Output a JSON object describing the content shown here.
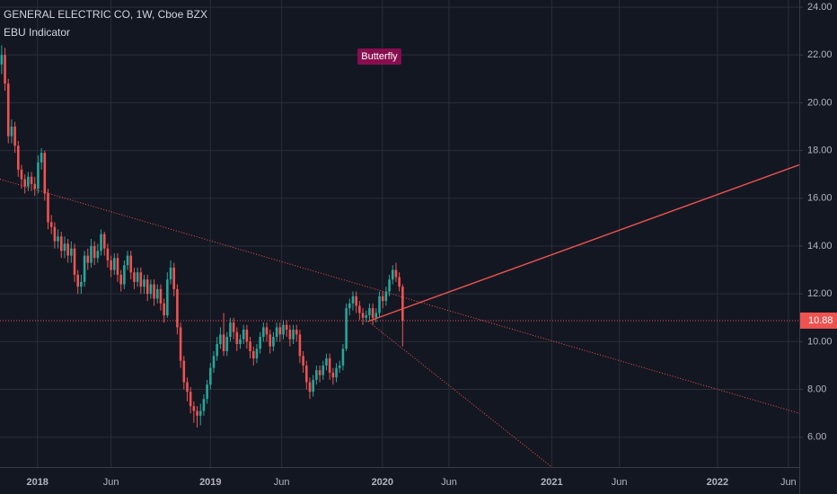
{
  "chart_data": {
    "type": "candlestick",
    "title": "GENERAL ELECTRIC CO, 1W, Cboe BZX",
    "subtitle": "EBU Indicator",
    "annotation": "Butterfly",
    "annotation_at": 114,
    "up_color": "#26a69a",
    "down_color": "#ef5350",
    "grid": true,
    "xlim": [
      -0.5,
      240.7
    ],
    "ylim": [
      4.75,
      24.3
    ],
    "xticks": [
      {
        "value": 10.8,
        "label": "2018"
      },
      {
        "value": 33,
        "label": "Jun"
      },
      {
        "value": 63,
        "label": "2019"
      },
      {
        "value": 84.5,
        "label": "Jun"
      },
      {
        "value": 114.9,
        "label": "2020"
      },
      {
        "value": 135,
        "label": "Jun"
      },
      {
        "value": 166,
        "label": "2021"
      },
      {
        "value": 186.4,
        "label": "Jun"
      },
      {
        "value": 216,
        "label": "2022"
      },
      {
        "value": 237.4,
        "label": "Jun"
      }
    ],
    "yticks": [
      {
        "value": 6,
        "label": "6.00"
      },
      {
        "value": 8,
        "label": "8.00"
      },
      {
        "value": 10,
        "label": "10.00"
      },
      {
        "value": 12,
        "label": "12.00"
      },
      {
        "value": 14,
        "label": "14.00"
      },
      {
        "value": 16,
        "label": "16.00"
      },
      {
        "value": 18,
        "label": "18.00"
      },
      {
        "value": 20,
        "label": "20.00"
      },
      {
        "value": 22,
        "label": "22.00"
      },
      {
        "value": 24,
        "label": "24.00"
      }
    ],
    "last_price": 10.88,
    "last_price_color": "#ef5350",
    "lines": [
      {
        "x": [
          -0.5,
          240.7
        ],
        "y": [
          16.8,
          7.0
        ],
        "style": "dotted",
        "color": "#ef5350"
      },
      {
        "x": [
          110.6,
          240.7
        ],
        "y": [
          10.85,
          17.4
        ],
        "style": "solid",
        "color": "#ef5350"
      },
      {
        "x": [
          110.6,
          166
        ],
        "y": [
          10.85,
          4.75
        ],
        "style": "dotted",
        "color": "#ef5350"
      }
    ],
    "ohlc": [
      [
        21.6,
        22.4,
        21.2,
        22.0
      ],
      [
        22.0,
        22.3,
        20.5,
        20.8
      ],
      [
        20.8,
        21.0,
        18.3,
        18.6
      ],
      [
        18.6,
        19.3,
        18.3,
        19.0
      ],
      [
        19.0,
        19.2,
        17.9,
        18.2
      ],
      [
        18.2,
        18.4,
        16.9,
        17.2
      ],
      [
        17.2,
        17.4,
        16.4,
        16.8
      ],
      [
        16.8,
        17.0,
        16.2,
        16.5
      ],
      [
        16.5,
        17.1,
        16.3,
        16.9
      ],
      [
        16.9,
        17.1,
        16.3,
        16.6
      ],
      [
        16.6,
        16.9,
        16.1,
        16.4
      ],
      [
        16.4,
        17.8,
        16.2,
        17.5
      ],
      [
        17.5,
        18.1,
        17.2,
        17.9
      ],
      [
        17.9,
        18.0,
        15.9,
        16.2
      ],
      [
        16.2,
        16.4,
        14.7,
        15.0
      ],
      [
        15.0,
        15.3,
        14.5,
        14.8
      ],
      [
        14.8,
        15.0,
        13.9,
        14.2
      ],
      [
        14.2,
        14.7,
        13.9,
        14.4
      ],
      [
        14.4,
        14.6,
        13.5,
        13.8
      ],
      [
        13.8,
        14.4,
        13.5,
        14.1
      ],
      [
        14.1,
        14.3,
        13.3,
        13.6
      ],
      [
        13.6,
        14.2,
        13.3,
        13.9
      ],
      [
        13.9,
        14.1,
        12.5,
        12.8
      ],
      [
        12.8,
        13.0,
        12.0,
        12.3
      ],
      [
        12.3,
        12.8,
        12.0,
        12.5
      ],
      [
        12.5,
        13.8,
        12.3,
        13.6
      ],
      [
        13.6,
        13.9,
        13.0,
        13.3
      ],
      [
        13.3,
        14.3,
        13.1,
        14.0
      ],
      [
        14.0,
        14.2,
        13.2,
        13.5
      ],
      [
        13.5,
        14.1,
        13.3,
        13.8
      ],
      [
        13.8,
        14.7,
        13.6,
        14.5
      ],
      [
        14.5,
        14.6,
        13.6,
        13.9
      ],
      [
        13.9,
        14.1,
        13.1,
        13.4
      ],
      [
        13.4,
        13.6,
        12.7,
        13.0
      ],
      [
        13.0,
        13.7,
        12.8,
        13.5
      ],
      [
        13.5,
        13.7,
        12.5,
        12.8
      ],
      [
        12.8,
        13.0,
        12.1,
        12.4
      ],
      [
        12.4,
        13.4,
        12.2,
        13.2
      ],
      [
        13.2,
        13.8,
        13.0,
        13.6
      ],
      [
        13.6,
        13.8,
        12.6,
        12.9
      ],
      [
        12.9,
        13.1,
        12.2,
        12.5
      ],
      [
        12.5,
        13.1,
        12.3,
        12.9
      ],
      [
        12.9,
        13.1,
        12.0,
        12.3
      ],
      [
        12.3,
        12.8,
        12.0,
        12.6
      ],
      [
        12.6,
        12.8,
        11.7,
        12.0
      ],
      [
        12.0,
        12.6,
        11.8,
        12.4
      ],
      [
        12.4,
        12.6,
        11.5,
        11.8
      ],
      [
        11.8,
        12.4,
        11.6,
        12.2
      ],
      [
        12.2,
        12.4,
        11.3,
        11.6
      ],
      [
        11.6,
        11.8,
        10.8,
        11.1
      ],
      [
        11.1,
        12.9,
        11.0,
        12.6
      ],
      [
        12.6,
        13.4,
        12.4,
        13.1
      ],
      [
        13.1,
        13.3,
        11.9,
        12.2
      ],
      [
        12.2,
        12.4,
        10.3,
        10.6
      ],
      [
        10.6,
        10.8,
        8.9,
        9.2
      ],
      [
        9.2,
        9.4,
        8.0,
        8.3
      ],
      [
        8.3,
        8.5,
        7.5,
        7.9
      ],
      [
        7.9,
        8.1,
        7.0,
        7.3
      ],
      [
        7.3,
        7.5,
        6.6,
        7.1
      ],
      [
        7.1,
        7.3,
        6.4,
        6.9
      ],
      [
        6.9,
        7.4,
        6.5,
        7.1
      ],
      [
        7.1,
        7.8,
        6.9,
        7.6
      ],
      [
        7.6,
        8.4,
        7.4,
        8.2
      ],
      [
        8.2,
        9.1,
        8.0,
        8.9
      ],
      [
        8.9,
        9.6,
        8.7,
        9.4
      ],
      [
        9.4,
        10.2,
        9.2,
        9.9
      ],
      [
        9.9,
        10.6,
        9.7,
        10.3
      ],
      [
        10.3,
        11.2,
        9.4,
        9.6
      ],
      [
        9.6,
        10.4,
        9.4,
        10.2
      ],
      [
        10.2,
        11.0,
        10.0,
        10.8
      ],
      [
        10.8,
        11.0,
        10.1,
        10.4
      ],
      [
        10.4,
        10.6,
        9.6,
        9.9
      ],
      [
        9.9,
        10.3,
        9.7,
        10.1
      ],
      [
        10.1,
        10.7,
        9.9,
        10.5
      ],
      [
        10.5,
        10.7,
        9.7,
        10.0
      ],
      [
        10.0,
        10.2,
        9.3,
        9.6
      ],
      [
        9.6,
        9.8,
        9.0,
        9.3
      ],
      [
        9.3,
        9.9,
        9.1,
        9.7
      ],
      [
        9.7,
        10.4,
        9.5,
        10.2
      ],
      [
        10.2,
        10.8,
        10.0,
        10.6
      ],
      [
        10.6,
        10.8,
        10.0,
        10.3
      ],
      [
        10.3,
        10.5,
        9.5,
        9.8
      ],
      [
        9.8,
        10.4,
        9.6,
        10.2
      ],
      [
        10.2,
        10.8,
        10.0,
        10.6
      ],
      [
        10.6,
        10.8,
        10.0,
        10.3
      ],
      [
        10.3,
        10.9,
        10.1,
        10.7
      ],
      [
        10.7,
        10.9,
        10.2,
        10.5
      ],
      [
        10.5,
        10.7,
        9.8,
        10.1
      ],
      [
        10.1,
        10.7,
        9.9,
        10.5
      ],
      [
        10.5,
        10.7,
        10.0,
        10.3
      ],
      [
        10.3,
        10.5,
        9.1,
        9.4
      ],
      [
        9.4,
        9.6,
        8.7,
        9.0
      ],
      [
        9.0,
        9.2,
        8.0,
        8.3
      ],
      [
        8.3,
        8.5,
        7.6,
        7.9
      ],
      [
        7.9,
        8.6,
        7.7,
        8.4
      ],
      [
        8.4,
        9.0,
        8.2,
        8.8
      ],
      [
        8.8,
        9.0,
        8.3,
        8.6
      ],
      [
        8.6,
        9.2,
        8.4,
        9.0
      ],
      [
        9.0,
        9.5,
        8.8,
        9.3
      ],
      [
        9.3,
        9.5,
        8.4,
        8.7
      ],
      [
        8.7,
        8.9,
        8.2,
        8.5
      ],
      [
        8.5,
        9.1,
        8.3,
        8.9
      ],
      [
        8.9,
        9.2,
        8.7,
        9.0
      ],
      [
        9.0,
        9.9,
        8.8,
        9.7
      ],
      [
        9.7,
        11.6,
        9.6,
        11.4
      ],
      [
        11.4,
        11.8,
        11.1,
        11.6
      ],
      [
        11.6,
        12.1,
        11.3,
        11.9
      ],
      [
        11.9,
        12.1,
        11.2,
        11.5
      ],
      [
        11.5,
        11.7,
        10.9,
        11.2
      ],
      [
        11.2,
        11.4,
        10.7,
        11.0
      ],
      [
        11.0,
        11.3,
        10.8,
        11.1
      ],
      [
        11.1,
        11.6,
        10.9,
        11.4
      ],
      [
        11.4,
        11.6,
        10.7,
        11.0
      ],
      [
        11.0,
        11.4,
        10.8,
        11.2
      ],
      [
        11.2,
        12.1,
        11.0,
        11.9
      ],
      [
        11.9,
        12.1,
        11.4,
        11.7
      ],
      [
        11.7,
        12.3,
        11.5,
        12.1
      ],
      [
        12.1,
        12.8,
        11.9,
        12.6
      ],
      [
        12.6,
        13.2,
        12.4,
        13.0
      ],
      [
        13.0,
        13.3,
        12.5,
        12.7
      ],
      [
        12.7,
        12.9,
        12.1,
        12.3
      ],
      [
        12.3,
        12.4,
        9.8,
        10.88
      ]
    ]
  }
}
